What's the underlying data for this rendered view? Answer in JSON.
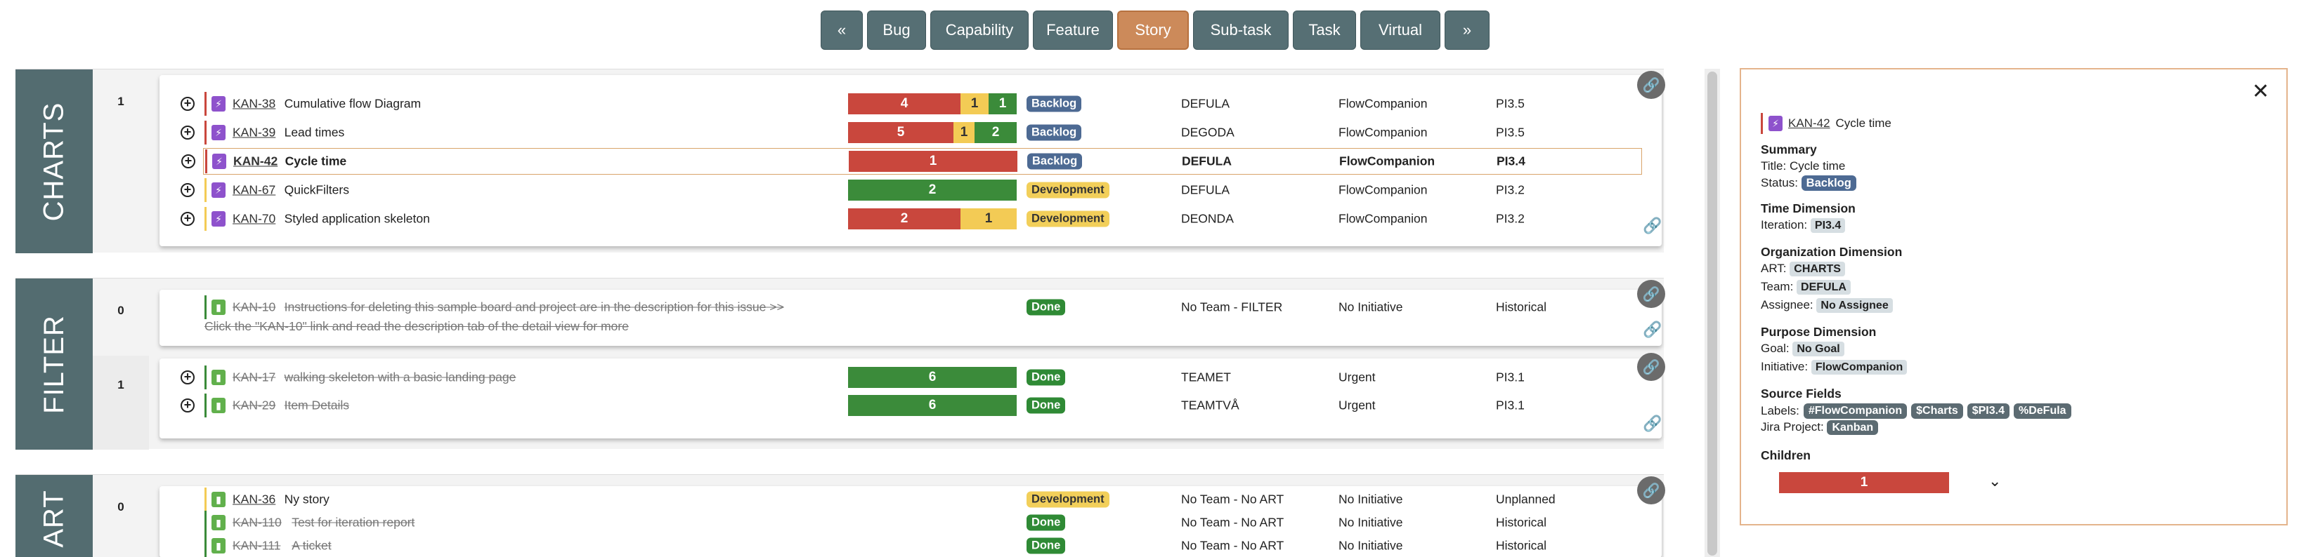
{
  "nav": {
    "prev": "«",
    "next": "»",
    "tabs": [
      {
        "label": "Bug"
      },
      {
        "label": "Capability"
      },
      {
        "label": "Feature"
      },
      {
        "label": "Story",
        "active": true
      },
      {
        "label": "Sub-task"
      },
      {
        "label": "Task"
      },
      {
        "label": "Virtual"
      }
    ]
  },
  "groups": {
    "charts": {
      "label": "CHARTS",
      "lane": "1",
      "rows": [
        {
          "key": "KAN-38",
          "title": "Cumulative flow Diagram",
          "progress": [
            4,
            1,
            1
          ],
          "status": "Backlog",
          "team": "DEFULA",
          "initiative": "FlowCompanion",
          "iteration": "PI3.5"
        },
        {
          "key": "KAN-39",
          "title": "Lead times",
          "progress": [
            5,
            1,
            2
          ],
          "status": "Backlog",
          "team": "DEGODA",
          "initiative": "FlowCompanion",
          "iteration": "PI3.5"
        },
        {
          "key": "KAN-42",
          "title": "Cycle time",
          "progress": [
            1,
            0,
            0
          ],
          "status": "Backlog",
          "team": "DEFULA",
          "initiative": "FlowCompanion",
          "iteration": "PI3.4"
        },
        {
          "key": "KAN-67",
          "title": "QuickFilters",
          "progress": [
            0,
            0,
            2
          ],
          "status": "Development",
          "team": "DEFULA",
          "initiative": "FlowCompanion",
          "iteration": "PI3.2"
        },
        {
          "key": "KAN-70",
          "title": "Styled application skeleton",
          "progress": [
            2,
            1,
            0
          ],
          "status": "Development",
          "team": "DEONDA",
          "initiative": "FlowCompanion",
          "iteration": "PI3.2"
        }
      ]
    },
    "filter": {
      "label": "FILTER",
      "lane0": "0",
      "lane1": "1",
      "row0": {
        "key": "KAN-10",
        "title": "Instructions for deleting this sample board and project are in the description for this issue >>",
        "title2": "Click the \"KAN-10\" link and read the description tab of the detail view for more",
        "status": "Done",
        "team": "No Team - FILTER",
        "initiative": "No Initiative",
        "iteration": "Historical"
      },
      "rows1": [
        {
          "key": "KAN-17",
          "title": "walking skeleton with a basic landing page",
          "progress": [
            0,
            0,
            6
          ],
          "status": "Done",
          "team": "TEAMET",
          "initiative": "Urgent",
          "iteration": "PI3.1"
        },
        {
          "key": "KAN-29",
          "title": "Item Details",
          "progress": [
            0,
            0,
            6
          ],
          "status": "Done",
          "team": "TEAMTVÅ",
          "initiative": "Urgent",
          "iteration": "PI3.1"
        }
      ]
    },
    "art": {
      "label": "ART",
      "lane": "0",
      "rows": [
        {
          "key": "KAN-36",
          "title": "Ny story",
          "status": "Development",
          "team": "No Team - No ART",
          "initiative": "No Initiative",
          "iteration": "Unplanned",
          "done": false
        },
        {
          "key": "KAN-110",
          "title": "Test for iteration report",
          "status": "Done",
          "team": "No Team - No ART",
          "initiative": "No Initiative",
          "iteration": "Historical",
          "done": true
        },
        {
          "key": "KAN-111",
          "title": "A ticket",
          "status": "Done",
          "team": "No Team - No ART",
          "initiative": "No Initiative",
          "iteration": "Historical",
          "done": true
        }
      ]
    }
  },
  "detail": {
    "close": "✕",
    "key": "KAN-42",
    "title": "Cycle time",
    "summary_h": "Summary",
    "title_label": "Title:",
    "title_value": "Cycle time",
    "status_label": "Status:",
    "status_value": "Backlog",
    "time_h": "Time Dimension",
    "iteration_label": "Iteration:",
    "iteration_value": "PI3.4",
    "org_h": "Organization Dimension",
    "art_label": "ART:",
    "art_value": "CHARTS",
    "team_label": "Team:",
    "team_value": "DEFULA",
    "assignee_label": "Assignee:",
    "assignee_value": "No Assignee",
    "purpose_h": "Purpose Dimension",
    "goal_label": "Goal:",
    "goal_value": "No Goal",
    "initiative_label": "Initiative:",
    "initiative_value": "FlowCompanion",
    "source_h": "Source Fields",
    "labels_label": "Labels:",
    "labels": [
      "#FlowCompanion",
      "$Charts",
      "$PI3.4",
      "%DeFula"
    ],
    "jira_label": "Jira Project:",
    "jira_value": "Kanban",
    "children_h": "Children",
    "children_progress": 1
  },
  "colors": {
    "nav": "#566f74",
    "active_tab": "#cc8a5a",
    "group_label": "#536c70",
    "red": "#c9473d",
    "yellow": "#f3cb55",
    "green": "#3b8b3a",
    "backlog": "#4d6a93"
  }
}
